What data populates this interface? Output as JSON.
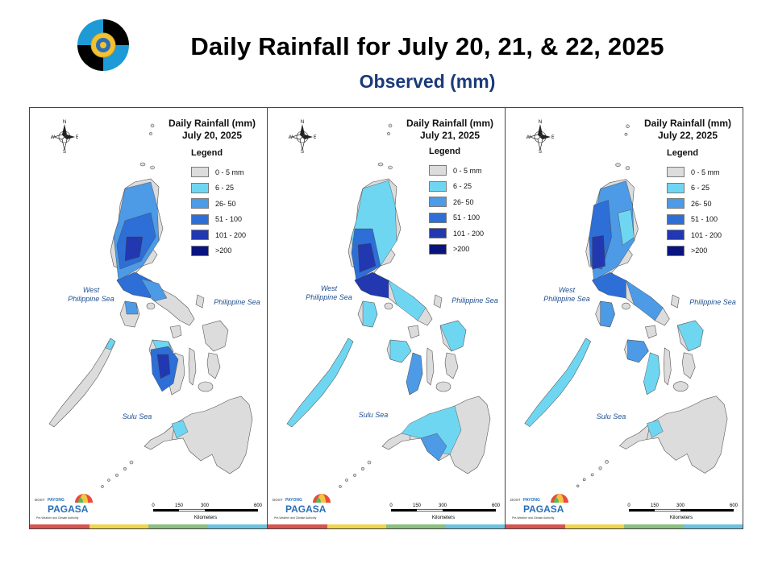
{
  "header": {
    "title": "Daily Rainfall for July 20, 21, & 22, 2025",
    "subtitle": "Observed (mm)"
  },
  "legend": {
    "title": "Legend",
    "classes": [
      {
        "label": "0 - 5 mm",
        "color": "#dcdcdc"
      },
      {
        "label": "6 - 25",
        "color": "#6fd6f2"
      },
      {
        "label": "26- 50",
        "color": "#4d9ae6"
      },
      {
        "label": "51 - 100",
        "color": "#2d6fd6"
      },
      {
        "label": "101 - 200",
        "color": "#2238b0"
      },
      {
        "label": ">200",
        "color": "#0a1480"
      }
    ]
  },
  "panels": [
    {
      "title_line1": "Daily Rainfall (mm)",
      "title_line2": "July 20, 2025",
      "dominant_class": "51 - 100"
    },
    {
      "title_line1": "Daily Rainfall (mm)",
      "title_line2": "July 21, 2025",
      "dominant_class": "6 - 25"
    },
    {
      "title_line1": "Daily Rainfall (mm)",
      "title_line2": "July 22, 2025",
      "dominant_class": "51 - 100"
    }
  ],
  "labels": {
    "west_sea_line1": "West",
    "west_sea_line2": "Philippine Sea",
    "east_sea": "Philippine Sea",
    "sulu_sea": "Sulu Sea",
    "compass_n": "N",
    "compass_s": "S",
    "compass_e": "E",
    "compass_w": "W",
    "scale_ticks": [
      "0",
      "150",
      "300",
      "600"
    ],
    "scale_unit": "Kilometers",
    "pagasa_small": "DOST",
    "pagasa_payong": "PAYONG",
    "pagasa_name": "PAGASA",
    "pagasa_tagline": "Pre-Weather and Climate Authority"
  },
  "footer_colors": [
    "#d9534f",
    "#f0d54a",
    "#8cc07f",
    "#6cc3e0"
  ]
}
